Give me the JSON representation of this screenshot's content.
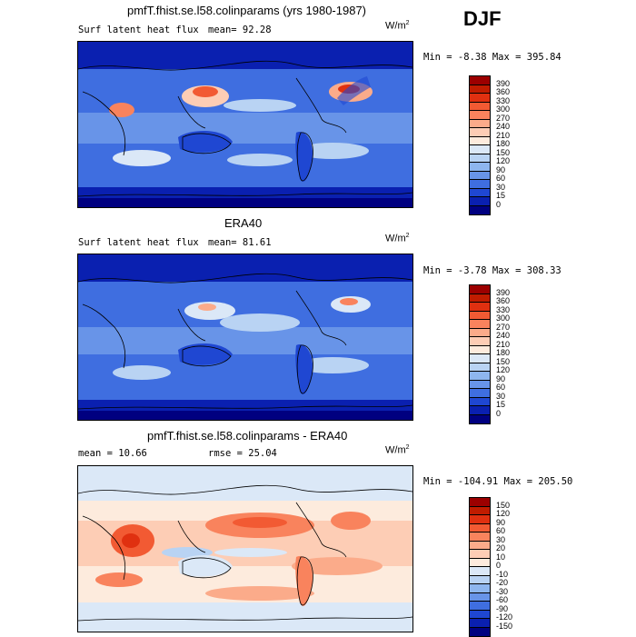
{
  "season": "DJF",
  "panels": [
    {
      "id": "model",
      "title": "pmfT.fhist.se.l58.colinparams (yrs 1980-1987)",
      "left_label": "Surf latent heat flux",
      "right_label": "mean=  92.28",
      "units": "W/m",
      "units_sup": "2",
      "minmax": "Min =  -8.38 Max = 395.84",
      "colorbar": {
        "labels": [
          "390",
          "360",
          "330",
          "300",
          "270",
          "240",
          "210",
          "180",
          "150",
          "120",
          "90",
          "60",
          "30",
          "15",
          "0"
        ],
        "colors": [
          "#9c0000",
          "#c01c00",
          "#e03010",
          "#f25a33",
          "#f9835d",
          "#fbab8a",
          "#fdcdb5",
          "#fdebdd",
          "#dbe8f7",
          "#b9d3f3",
          "#8eb6ee",
          "#6894e8",
          "#3f6ee0",
          "#1f47d2",
          "#0a20b0",
          "#000080"
        ]
      }
    },
    {
      "id": "obs",
      "title": "ERA40",
      "left_label": "Surf latent heat flux",
      "right_label": "mean=  81.61",
      "units": "W/m",
      "units_sup": "2",
      "minmax": "Min =  -3.78 Max = 308.33",
      "colorbar": {
        "labels": [
          "390",
          "360",
          "330",
          "300",
          "270",
          "240",
          "210",
          "180",
          "150",
          "120",
          "90",
          "60",
          "30",
          "15",
          "0"
        ],
        "colors": [
          "#9c0000",
          "#c01c00",
          "#e03010",
          "#f25a33",
          "#f9835d",
          "#fbab8a",
          "#fdcdb5",
          "#fdebdd",
          "#dbe8f7",
          "#b9d3f3",
          "#8eb6ee",
          "#6894e8",
          "#3f6ee0",
          "#1f47d2",
          "#0a20b0",
          "#000080"
        ]
      }
    },
    {
      "id": "diff",
      "title": "pmfT.fhist.se.l58.colinparams - ERA40",
      "left_label": "mean =  10.66",
      "right_label": "rmse =  25.04",
      "units": "W/m",
      "units_sup": "2",
      "minmax": "Min = -104.91 Max = 205.50",
      "colorbar": {
        "labels": [
          "150",
          "120",
          "90",
          "60",
          "30",
          "20",
          "10",
          "0",
          "-10",
          "-20",
          "-30",
          "-60",
          "-90",
          "-120",
          "-150"
        ],
        "colors": [
          "#9c0000",
          "#c01c00",
          "#e03010",
          "#f25a33",
          "#f9835d",
          "#fbab8a",
          "#fdcdb5",
          "#fdebdd",
          "#dbe8f7",
          "#b9d3f3",
          "#8eb6ee",
          "#6894e8",
          "#3f6ee0",
          "#1f47d2",
          "#0a20b0",
          "#000080"
        ]
      }
    }
  ],
  "chart_data": [
    {
      "type": "heatmap",
      "title": "pmfT.fhist.se.l58.colinparams (yrs 1980-1987)",
      "variable": "Surf latent heat flux",
      "units": "W/m^2",
      "mean": 92.28,
      "min": -8.38,
      "max": 395.84,
      "contour_levels": [
        0,
        15,
        30,
        60,
        90,
        120,
        150,
        180,
        210,
        240,
        270,
        300,
        330,
        360,
        390
      ]
    },
    {
      "type": "heatmap",
      "title": "ERA40",
      "variable": "Surf latent heat flux",
      "units": "W/m^2",
      "mean": 81.61,
      "min": -3.78,
      "max": 308.33,
      "contour_levels": [
        0,
        15,
        30,
        60,
        90,
        120,
        150,
        180,
        210,
        240,
        270,
        300,
        330,
        360,
        390
      ]
    },
    {
      "type": "heatmap",
      "title": "pmfT.fhist.se.l58.colinparams - ERA40",
      "units": "W/m^2",
      "mean": 10.66,
      "rmse": 25.04,
      "min": -104.91,
      "max": 205.5,
      "contour_levels": [
        -150,
        -120,
        -90,
        -60,
        -30,
        -20,
        -10,
        0,
        10,
        20,
        30,
        60,
        90,
        120,
        150
      ]
    }
  ]
}
